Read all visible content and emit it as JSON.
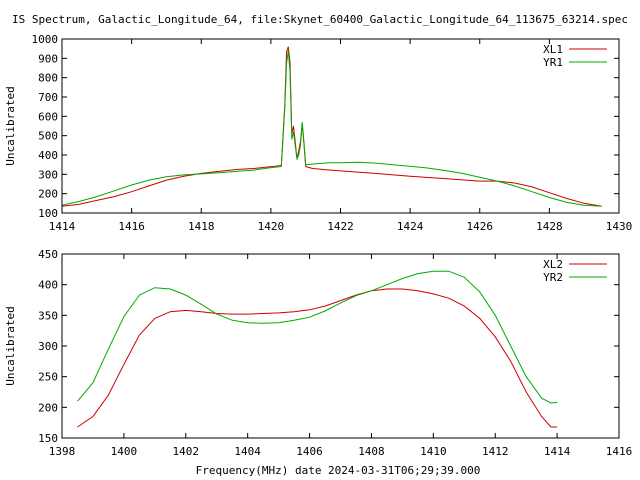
{
  "title": "IS Spectrum, Galactic_Longitude_64, file:Skynet_60400_Galactic_Longitude_64_113675_63214.spec",
  "xlabel": "Frequency(MHz) date 2024-03-31T06;29;39.000",
  "chart_data": [
    {
      "type": "line",
      "ylabel": "Uncalibrated",
      "xlim": [
        1414,
        1430
      ],
      "ylim": [
        100,
        1000
      ],
      "xticks": [
        1414,
        1416,
        1418,
        1420,
        1422,
        1424,
        1426,
        1428,
        1430
      ],
      "yticks": [
        100,
        200,
        300,
        400,
        500,
        600,
        700,
        800,
        900,
        1000
      ],
      "legend_position": "top-right",
      "series": [
        {
          "name": "XL1",
          "color": "#cc0000",
          "points": [
            [
              1414.0,
              135
            ],
            [
              1414.5,
              145
            ],
            [
              1415.0,
              165
            ],
            [
              1415.5,
              185
            ],
            [
              1416.0,
              210
            ],
            [
              1416.5,
              240
            ],
            [
              1417.0,
              270
            ],
            [
              1417.5,
              290
            ],
            [
              1418.0,
              305
            ],
            [
              1418.5,
              315
            ],
            [
              1419.0,
              325
            ],
            [
              1419.5,
              330
            ],
            [
              1420.0,
              340
            ],
            [
              1420.3,
              345
            ],
            [
              1420.4,
              660
            ],
            [
              1420.45,
              930
            ],
            [
              1420.5,
              960
            ],
            [
              1420.55,
              880
            ],
            [
              1420.6,
              510
            ],
            [
              1420.65,
              550
            ],
            [
              1420.7,
              470
            ],
            [
              1420.75,
              380
            ],
            [
              1420.8,
              420
            ],
            [
              1420.85,
              470
            ],
            [
              1420.9,
              560
            ],
            [
              1420.95,
              460
            ],
            [
              1421.0,
              340
            ],
            [
              1421.2,
              330
            ],
            [
              1421.5,
              325
            ],
            [
              1422.0,
              318
            ],
            [
              1423.0,
              305
            ],
            [
              1424.0,
              290
            ],
            [
              1425.0,
              278
            ],
            [
              1426.0,
              265
            ],
            [
              1426.5,
              265
            ],
            [
              1427.0,
              255
            ],
            [
              1427.5,
              235
            ],
            [
              1428.0,
              205
            ],
            [
              1428.5,
              175
            ],
            [
              1429.0,
              150
            ],
            [
              1429.5,
              135
            ]
          ]
        },
        {
          "name": "YR1",
          "color": "#00aa00",
          "points": [
            [
              1414.0,
              140
            ],
            [
              1414.5,
              160
            ],
            [
              1415.0,
              185
            ],
            [
              1415.5,
              215
            ],
            [
              1416.0,
              245
            ],
            [
              1416.5,
              270
            ],
            [
              1417.0,
              288
            ],
            [
              1417.5,
              297
            ],
            [
              1418.0,
              302
            ],
            [
              1418.5,
              308
            ],
            [
              1419.0,
              315
            ],
            [
              1419.5,
              322
            ],
            [
              1420.0,
              335
            ],
            [
              1420.3,
              340
            ],
            [
              1420.4,
              640
            ],
            [
              1420.45,
              870
            ],
            [
              1420.5,
              940
            ],
            [
              1420.55,
              830
            ],
            [
              1420.6,
              480
            ],
            [
              1420.65,
              520
            ],
            [
              1420.7,
              450
            ],
            [
              1420.75,
              380
            ],
            [
              1420.8,
              400
            ],
            [
              1420.85,
              450
            ],
            [
              1420.9,
              570
            ],
            [
              1420.95,
              470
            ],
            [
              1421.0,
              350
            ],
            [
              1421.3,
              355
            ],
            [
              1421.7,
              360
            ],
            [
              1422.0,
              360
            ],
            [
              1422.5,
              362
            ],
            [
              1423.0,
              358
            ],
            [
              1423.5,
              350
            ],
            [
              1424.0,
              342
            ],
            [
              1424.5,
              333
            ],
            [
              1425.0,
              320
            ],
            [
              1425.5,
              305
            ],
            [
              1426.0,
              285
            ],
            [
              1426.5,
              265
            ],
            [
              1427.0,
              240
            ],
            [
              1427.5,
              210
            ],
            [
              1428.0,
              180
            ],
            [
              1428.5,
              155
            ],
            [
              1429.0,
              140
            ],
            [
              1429.5,
              135
            ]
          ]
        }
      ]
    },
    {
      "type": "line",
      "ylabel": "Uncalibrated",
      "xlim": [
        1398,
        1416
      ],
      "ylim": [
        150,
        450
      ],
      "xticks": [
        1398,
        1400,
        1402,
        1404,
        1406,
        1408,
        1410,
        1412,
        1414,
        1416
      ],
      "yticks": [
        150,
        200,
        250,
        300,
        350,
        400,
        450
      ],
      "legend_position": "top-right",
      "series": [
        {
          "name": "XL2",
          "color": "#cc0000",
          "points": [
            [
              1398.5,
              168
            ],
            [
              1399.0,
              185
            ],
            [
              1399.5,
              220
            ],
            [
              1400.0,
              270
            ],
            [
              1400.5,
              318
            ],
            [
              1401.0,
              345
            ],
            [
              1401.5,
              356
            ],
            [
              1402.0,
              358
            ],
            [
              1402.5,
              356
            ],
            [
              1403.0,
              353
            ],
            [
              1403.5,
              352
            ],
            [
              1404.0,
              352
            ],
            [
              1404.5,
              353
            ],
            [
              1405.0,
              354
            ],
            [
              1405.5,
              356
            ],
            [
              1406.0,
              359
            ],
            [
              1406.5,
              365
            ],
            [
              1407.0,
              374
            ],
            [
              1407.5,
              383
            ],
            [
              1408.0,
              390
            ],
            [
              1408.5,
              393
            ],
            [
              1409.0,
              393
            ],
            [
              1409.5,
              390
            ],
            [
              1410.0,
              385
            ],
            [
              1410.5,
              378
            ],
            [
              1411.0,
              365
            ],
            [
              1411.5,
              345
            ],
            [
              1412.0,
              315
            ],
            [
              1412.5,
              275
            ],
            [
              1413.0,
              225
            ],
            [
              1413.5,
              185
            ],
            [
              1413.8,
              168
            ],
            [
              1414.0,
              168
            ]
          ]
        },
        {
          "name": "YR2",
          "color": "#00aa00",
          "points": [
            [
              1398.5,
              210
            ],
            [
              1399.0,
              240
            ],
            [
              1399.5,
              295
            ],
            [
              1400.0,
              348
            ],
            [
              1400.5,
              383
            ],
            [
              1401.0,
              395
            ],
            [
              1401.5,
              393
            ],
            [
              1402.0,
              383
            ],
            [
              1402.5,
              368
            ],
            [
              1403.0,
              352
            ],
            [
              1403.5,
              342
            ],
            [
              1404.0,
              338
            ],
            [
              1404.5,
              337
            ],
            [
              1405.0,
              338
            ],
            [
              1405.5,
              342
            ],
            [
              1406.0,
              347
            ],
            [
              1406.5,
              357
            ],
            [
              1407.0,
              370
            ],
            [
              1407.5,
              382
            ],
            [
              1408.0,
              390
            ],
            [
              1408.5,
              400
            ],
            [
              1409.0,
              410
            ],
            [
              1409.5,
              418
            ],
            [
              1410.0,
              422
            ],
            [
              1410.5,
              422
            ],
            [
              1411.0,
              412
            ],
            [
              1411.5,
              388
            ],
            [
              1412.0,
              350
            ],
            [
              1412.5,
              300
            ],
            [
              1413.0,
              250
            ],
            [
              1413.5,
              215
            ],
            [
              1413.8,
              207
            ],
            [
              1414.0,
              208
            ]
          ]
        }
      ]
    }
  ]
}
